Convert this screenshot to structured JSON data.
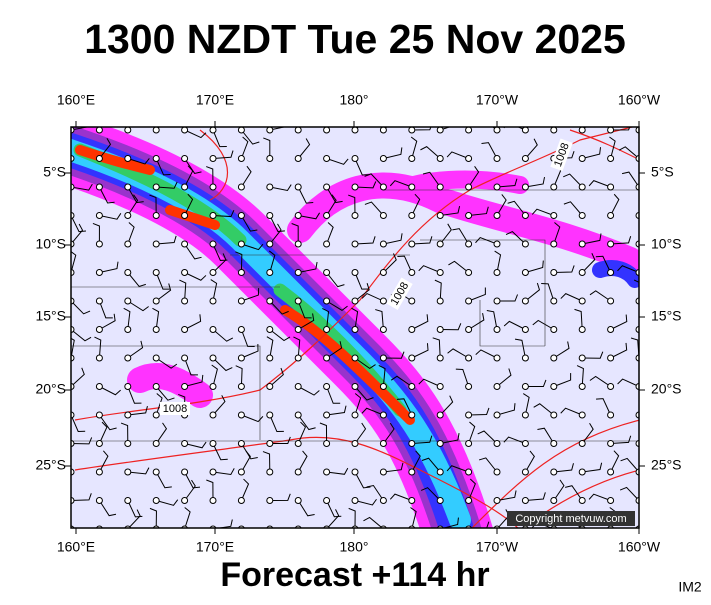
{
  "header": {
    "title": "1300 NZDT Tue 25 Nov 2025"
  },
  "footer": {
    "forecast": "Forecast +114 hr",
    "corner_label": "IM2"
  },
  "map": {
    "copyright": "Copyright metvuw.com",
    "lon_labels_top": [
      "160°E",
      "170°E",
      "180°",
      "170°W",
      "160°W"
    ],
    "lon_labels_bottom": [
      "160°E",
      "170°E",
      "180°",
      "170°W",
      "160°W"
    ],
    "lat_labels_left": [
      "5°S",
      "10°S",
      "15°S",
      "20°S",
      "25°S"
    ],
    "lat_labels_right": [
      "5°S",
      "10°S",
      "15°S",
      "20°S",
      "25°S"
    ],
    "isobar_labels": [
      "1008",
      "1008",
      "1008"
    ]
  }
}
